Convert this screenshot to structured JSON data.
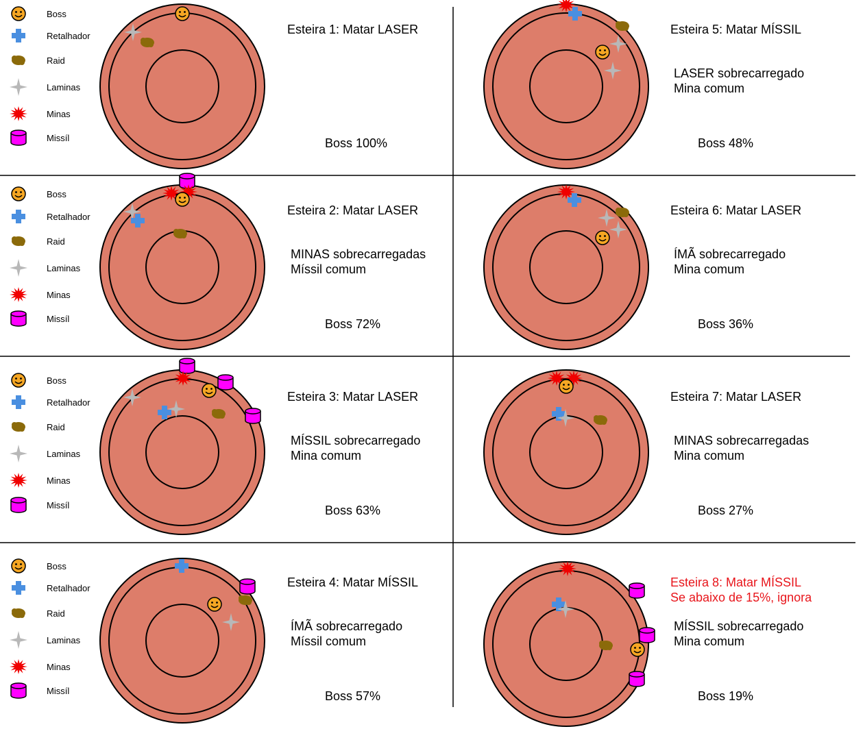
{
  "legend": [
    "Boss",
    "Retalhador",
    "Raid",
    "Laminas",
    "Minas",
    "Missíl"
  ],
  "colors": {
    "arena": "#dd7d6a",
    "boss": "#f5a623",
    "retalhador": "#4a8fe0",
    "raid": "#8b6a0a",
    "laminas": "#b8b8b8",
    "minas": "#f00000",
    "missil": "#ff00ff",
    "highlight": "#e8151b"
  },
  "panels": [
    {
      "title": "Esteira 1: Matar LASER",
      "lines": [],
      "boss": "Boss 100%"
    },
    {
      "title": "Esteira 2: Matar LASER",
      "lines": [
        "MINAS sobrecarregadas",
        "Míssil comum"
      ],
      "boss": "Boss 72%"
    },
    {
      "title": "Esteira 3: Matar LASER",
      "lines": [
        "MÍSSIL sobrecarregado",
        "Mina comum"
      ],
      "boss": "Boss 63%"
    },
    {
      "title": "Esteira 4: Matar MÍSSIL",
      "lines": [
        "ÍMÃ sobrecarregado",
        "Míssil comum"
      ],
      "boss": "Boss 57%"
    },
    {
      "title": "Esteira 5: Matar MÍSSIL",
      "lines": [
        "LASER sobrecarregado",
        "Mina comum"
      ],
      "boss": "Boss 48%"
    },
    {
      "title": "Esteira 6: Matar LASER",
      "lines": [
        "ÍMÃ sobrecarregado",
        "Mina comum"
      ],
      "boss": "Boss 36%"
    },
    {
      "title": "Esteira 7: Matar LASER",
      "lines": [
        "MINAS sobrecarregadas",
        "Mina comum"
      ],
      "boss": "Boss 27%"
    },
    {
      "title": "Esteira 8: Matar MÍSSIL",
      "subtitle": "Se abaixo de 15%, ignora",
      "lines": [
        "MÍSSIL sobrecarregado",
        "Mina comum"
      ],
      "boss": "Boss 19%"
    }
  ]
}
